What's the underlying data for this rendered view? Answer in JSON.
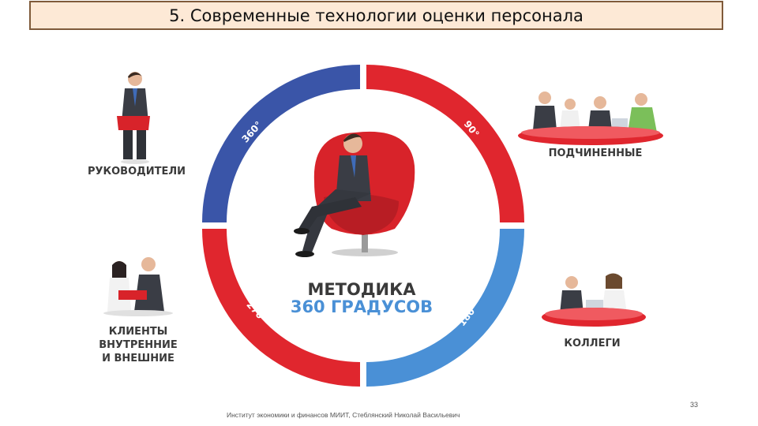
{
  "title": "5. Современные технологии оценки персонала",
  "center": {
    "line1": "МЕТОДИКА",
    "line2": "360 ГРАДУСОВ"
  },
  "degrees": {
    "d360": "360°",
    "d90": "90°",
    "d180": "180°",
    "d270": "270°"
  },
  "groups": {
    "managers": "РУКОВОДИТЕЛИ",
    "subordinates": "ПОДЧИНЕННЫЕ",
    "clients": [
      "КЛИЕНТЫ",
      "ВНУТРЕННИЕ",
      "И ВНЕШНИЕ"
    ],
    "colleagues": "КОЛЛЕГИ"
  },
  "colors": {
    "blue": "#3a55a8",
    "light_blue": "#4a90d6",
    "red": "#e0262e",
    "dark_red": "#c81e26"
  },
  "footer": "Институт экономики и финансов МИИТ, Стеблянский Николай Васильевич",
  "page_number": "33"
}
